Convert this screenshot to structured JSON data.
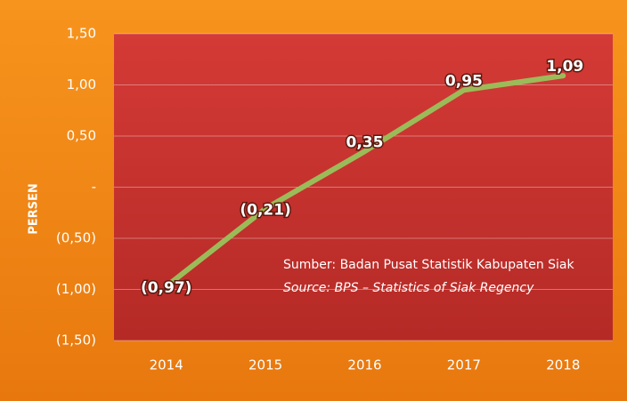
{
  "chart_data": {
    "type": "line",
    "y_label": "PERSEN",
    "categories": [
      "2014",
      "2015",
      "2016",
      "2017",
      "2018"
    ],
    "series": [
      {
        "name": "Persen",
        "color": "#9bbb59",
        "values": [
          -0.97,
          -0.21,
          0.35,
          0.95,
          1.09
        ],
        "value_labels": [
          "(0,97)",
          "(0,21)",
          "0,35",
          "0,95",
          "1,09"
        ]
      }
    ],
    "ylim": [
      -1.5,
      1.5
    ],
    "yticks": [
      {
        "value": -1.5,
        "label": "(1,50)"
      },
      {
        "value": -1.0,
        "label": "(1,00)"
      },
      {
        "value": -0.5,
        "label": "(0,50)"
      },
      {
        "value": 0,
        "label": "-"
      },
      {
        "value": 0.5,
        "label": "0,50"
      },
      {
        "value": 1.0,
        "label": "1,00"
      },
      {
        "value": 1.5,
        "label": "1,50"
      }
    ],
    "grid": true,
    "annotations": [
      "Sumber: Badan Pusat Statistik Kabupaten Siak",
      "Source: BPS – Statistics of Siak Regency"
    ]
  }
}
